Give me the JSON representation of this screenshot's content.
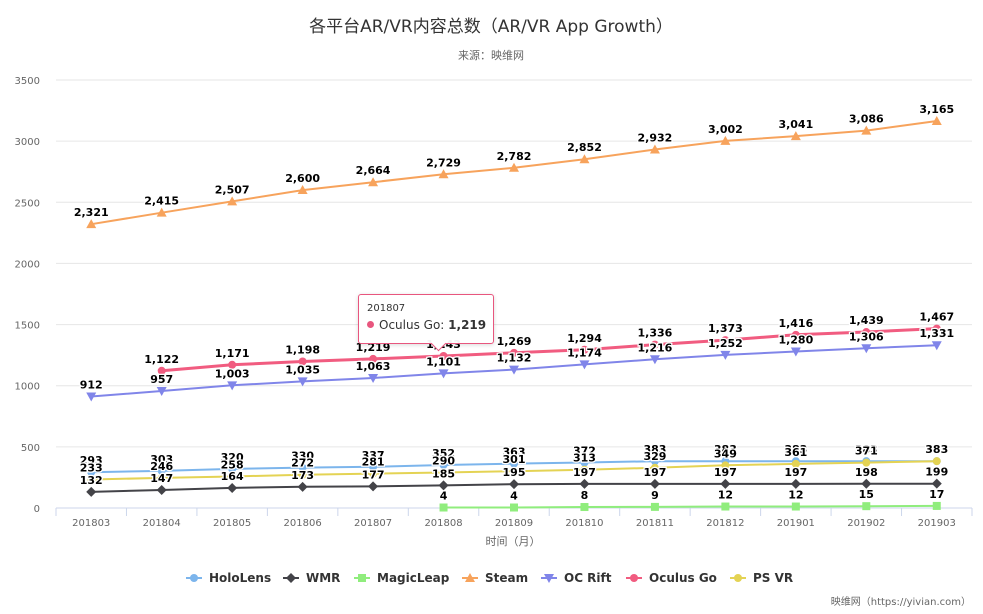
{
  "chart_data": {
    "type": "line",
    "title": "各平台AR/VR内容总数（AR/VR App Growth）",
    "subtitle": "来源：映维网",
    "xlabel": "时间（月）",
    "ylabel": "",
    "ylim": [
      0,
      3500
    ],
    "yticks": [
      0,
      500,
      1000,
      1500,
      2000,
      2500,
      3000,
      3500
    ],
    "grid": true,
    "legend_position": "bottom",
    "categories": [
      "201803",
      "201804",
      "201805",
      "201806",
      "201807",
      "201808",
      "201809",
      "201810",
      "201811",
      "201812",
      "201901",
      "201902",
      "201903"
    ],
    "series": [
      {
        "name": "HoloLens",
        "color": "#7cb5ec",
        "marker": "circle",
        "values": [
          293,
          303,
          320,
          330,
          337,
          352,
          363,
          372,
          383,
          383,
          383,
          383,
          383
        ]
      },
      {
        "name": "WMR",
        "color": "#434348",
        "marker": "diamond",
        "values": [
          132,
          147,
          164,
          173,
          177,
          185,
          195,
          197,
          197,
          197,
          197,
          198,
          199
        ]
      },
      {
        "name": "MagicLeap",
        "color": "#90ed7d",
        "marker": "square",
        "values": [
          null,
          null,
          null,
          null,
          null,
          4,
          4,
          8,
          9,
          12,
          12,
          15,
          17
        ]
      },
      {
        "name": "Steam",
        "color": "#f7a35c",
        "marker": "triangle",
        "values": [
          2321,
          2415,
          2507,
          2600,
          2664,
          2729,
          2782,
          2852,
          2932,
          3002,
          3041,
          3086,
          3165
        ]
      },
      {
        "name": "OC Rift",
        "color": "#8085e9",
        "marker": "triangle-down",
        "values": [
          912,
          957,
          1003,
          1035,
          1063,
          1101,
          1132,
          1174,
          1216,
          1252,
          1280,
          1306,
          1331
        ]
      },
      {
        "name": "Oculus Go",
        "color": "#f15c80",
        "marker": "circle",
        "values": [
          null,
          1122,
          1171,
          1198,
          1219,
          1243,
          1269,
          1294,
          1336,
          1373,
          1416,
          1439,
          1467
        ]
      },
      {
        "name": "PS VR",
        "color": "#e4d354",
        "marker": "circle",
        "values": [
          233,
          246,
          258,
          272,
          281,
          290,
          301,
          313,
          329,
          349,
          361,
          371,
          383
        ]
      }
    ],
    "tooltip": {
      "category": "201807",
      "series": "Oculus Go",
      "value": "1,219"
    }
  },
  "watermark": "映维网（https://yivian.com）"
}
